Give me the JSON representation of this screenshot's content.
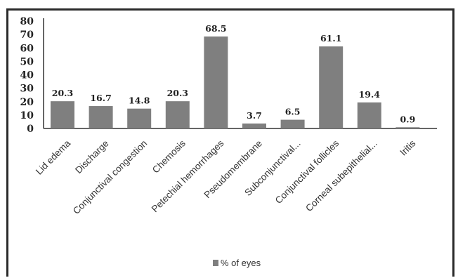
{
  "chart_data": {
    "type": "bar",
    "categories": [
      "Lid edema",
      "Discharge",
      "Conjunctival congestion",
      "Chemosis",
      "Petechial hemorrhages",
      "Pseudomembrane",
      "Subconjunctival...",
      "Conjunctival follicles",
      "Corneal subepithelial...",
      "Iritis"
    ],
    "series": [
      {
        "name": "% of eyes",
        "values": [
          20.3,
          16.7,
          14.8,
          20.3,
          68.5,
          3.7,
          6.5,
          61.1,
          19.4,
          0.9
        ]
      }
    ],
    "data_labels": [
      "20.3",
      "16.7",
      "14.8",
      "20.3",
      "68.5",
      "3.7",
      "6.5",
      "61.1",
      "19.4",
      "0.9"
    ],
    "yticks": [
      "0",
      "10",
      "20",
      "30",
      "40",
      "50",
      "60",
      "70",
      "80"
    ],
    "ylim": [
      0,
      80
    ],
    "grid": false,
    "legend_position": "bottom-center",
    "bar_color": "#7f7f7f"
  }
}
